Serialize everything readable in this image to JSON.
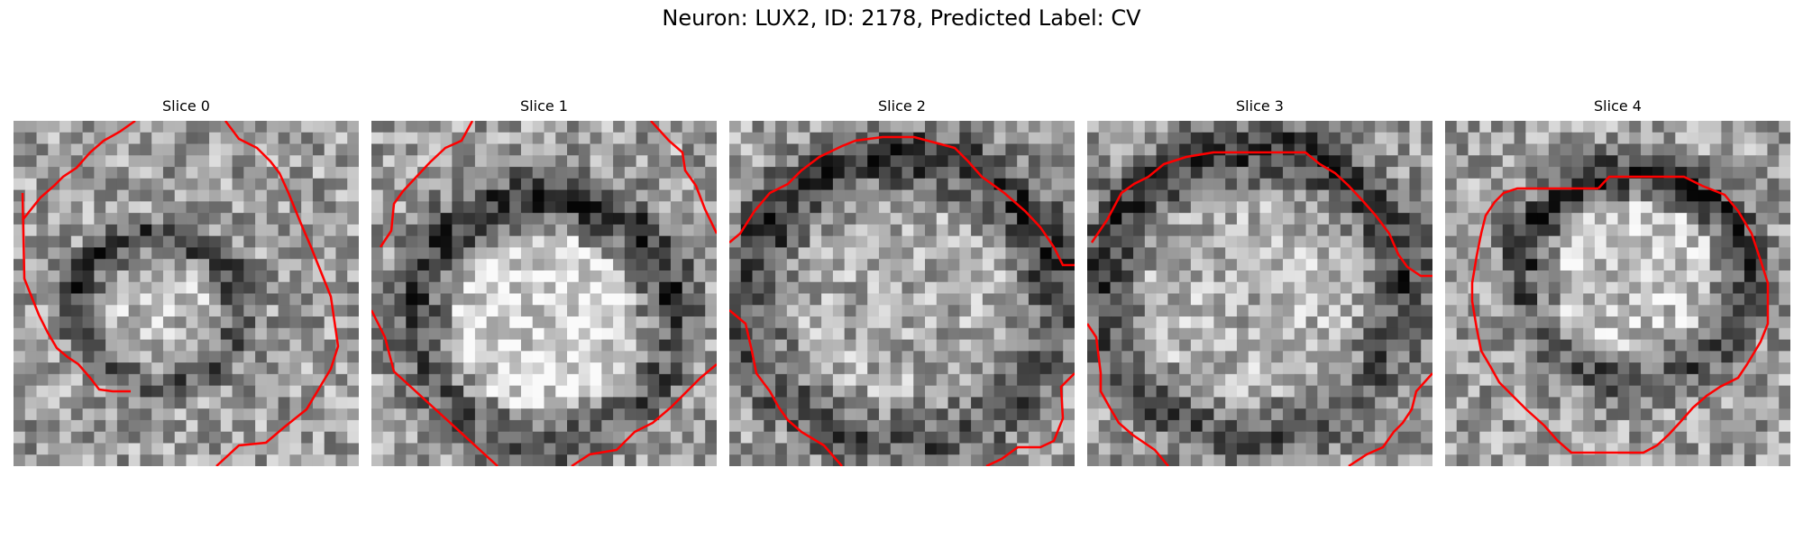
{
  "figure": {
    "title": "Neuron: LUX2, ID: 2178, Predicted Label: CV",
    "contour_color": "#ff0000",
    "slices": [
      {
        "title": "Slice 0",
        "seed": 11,
        "darkring": [
          0.42,
          0.55,
          0.24,
          0.22
        ],
        "brightcenter": 0.12
      },
      {
        "title": "Slice 1",
        "seed": 23,
        "darkring": [
          0.5,
          0.58,
          0.38,
          0.36
        ],
        "brightcenter": 0.22
      },
      {
        "title": "Slice 2",
        "seed": 37,
        "darkring": [
          0.5,
          0.52,
          0.45,
          0.42
        ],
        "brightcenter": 0.05
      },
      {
        "title": "Slice 3",
        "seed": 41,
        "darkring": [
          0.48,
          0.5,
          0.44,
          0.42
        ],
        "brightcenter": 0.08
      },
      {
        "title": "Slice 4",
        "seed": 53,
        "darkring": [
          0.55,
          0.45,
          0.33,
          0.3
        ],
        "brightcenter": 0.15
      }
    ]
  }
}
